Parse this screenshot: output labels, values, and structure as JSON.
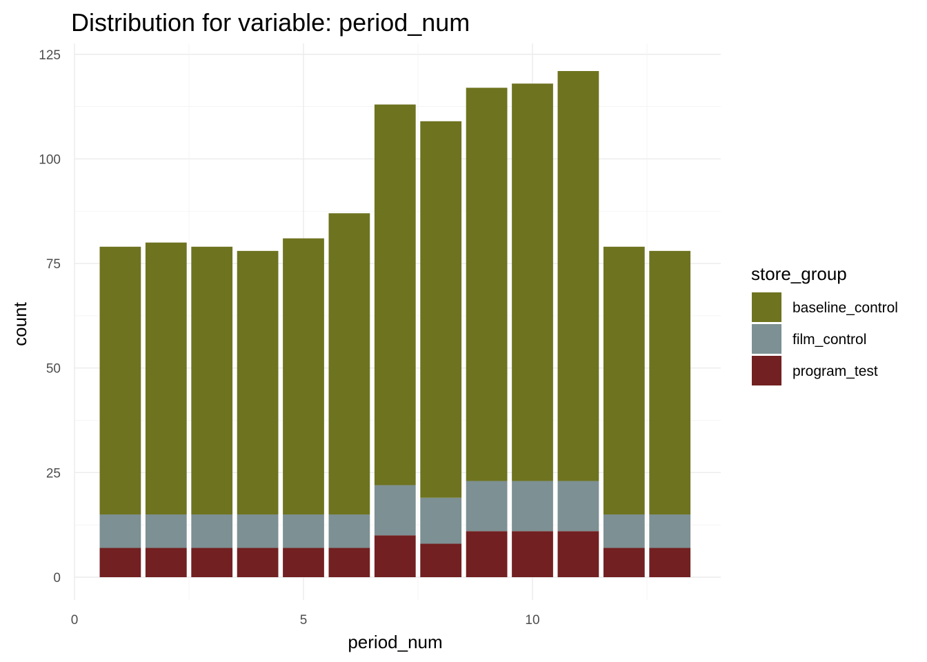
{
  "chart_data": {
    "type": "bar",
    "stacked": true,
    "title": "Distribution for variable: period_num",
    "xlabel": "period_num",
    "ylabel": "count",
    "xlim": [
      0,
      14
    ],
    "ylim": [
      0,
      125
    ],
    "x_ticks": [
      0,
      5,
      10
    ],
    "y_ticks": [
      0,
      25,
      50,
      75,
      100,
      125
    ],
    "grid": true,
    "legend_position": "right",
    "x": [
      1,
      2,
      3,
      4,
      5,
      6,
      7,
      8,
      9,
      10,
      11,
      12,
      13
    ],
    "series": [
      {
        "name": "program_test",
        "color": "#722021",
        "values": [
          7,
          7,
          7,
          7,
          7,
          7,
          10,
          8,
          11,
          11,
          11,
          7,
          7
        ]
      },
      {
        "name": "film_control",
        "color": "#7d9093",
        "values": [
          8,
          8,
          8,
          8,
          8,
          8,
          12,
          11,
          12,
          12,
          12,
          8,
          8
        ]
      },
      {
        "name": "baseline_control",
        "color": "#6e731f",
        "values": [
          64,
          65,
          64,
          63,
          66,
          72,
          91,
          90,
          94,
          95,
          98,
          64,
          63
        ]
      }
    ],
    "legend": {
      "title": "store_group",
      "order": [
        "baseline_control",
        "film_control",
        "program_test"
      ]
    }
  }
}
